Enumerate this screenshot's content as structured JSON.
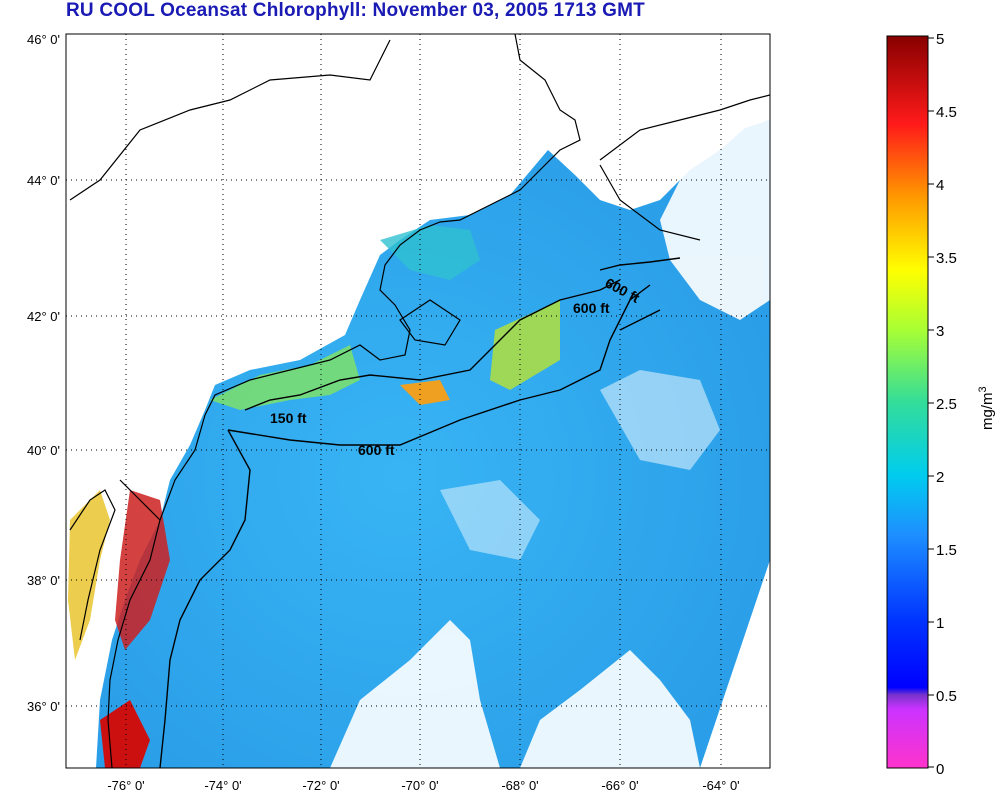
{
  "title": "RU COOL  Oceansat Chlorophyll:  November 03, 2005 1713 GMT",
  "map": {
    "lat_ticks": [
      "46° 0'",
      "44° 0'",
      "42° 0'",
      "40° 0'",
      "38° 0'",
      "36° 0'"
    ],
    "lon_ticks": [
      "-76° 0'",
      "-74° 0'",
      "-72° 0'",
      "-70° 0'",
      "-68° 0'",
      "-66° 0'",
      "-64° 0'"
    ],
    "contours": [
      {
        "label": "150 ft"
      },
      {
        "label": "600 ft"
      },
      {
        "label": "600 ft"
      },
      {
        "label": "600 ft"
      }
    ],
    "colors": {
      "land": "#ffffff",
      "coast": "#000000",
      "ocean_base": "#2aa8f0",
      "title": "#1a1ab4"
    }
  },
  "colorbar": {
    "ticks": [
      "5",
      "4.5",
      "4",
      "3.5",
      "3",
      "2.5",
      "2",
      "1.5",
      "1",
      "0.5",
      "0"
    ],
    "unit": "mg/m",
    "unit_exponent": "3"
  }
}
